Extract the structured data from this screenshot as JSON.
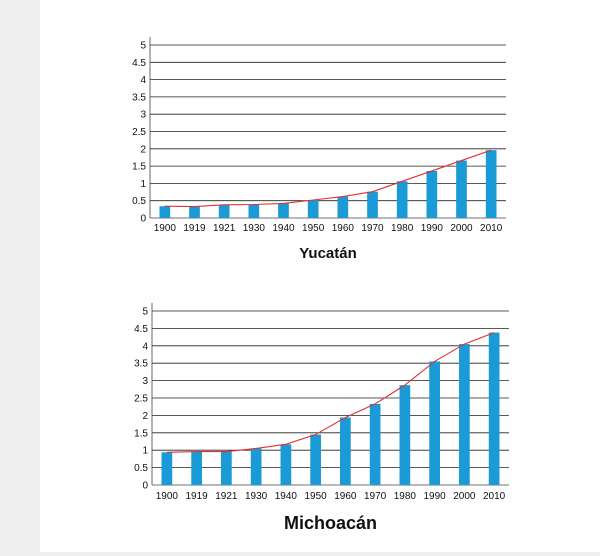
{
  "colors": {
    "bar": "#1a9ad6",
    "line": "#e0322f",
    "grid": "#222222",
    "axis": "#444444"
  },
  "chart_data": [
    {
      "type": "bar",
      "title": "Yucatán",
      "categories": [
        "1900",
        "1919",
        "1921",
        "1930",
        "1940",
        "1950",
        "1960",
        "1970",
        "1980",
        "1990",
        "2000",
        "2010"
      ],
      "values": [
        0.34,
        0.33,
        0.38,
        0.39,
        0.42,
        0.52,
        0.62,
        0.76,
        1.06,
        1.36,
        1.66,
        1.96
      ],
      "line_overlay": true,
      "ylim": [
        0,
        5
      ],
      "yticks": [
        "0",
        "0.5",
        "1",
        "1.5",
        "2",
        "2.5",
        "3",
        "3.5",
        "4",
        "4.5",
        "5"
      ],
      "xlabel": "",
      "ylabel": "",
      "grid": true
    },
    {
      "type": "bar",
      "title": "Michoacán",
      "categories": [
        "1900",
        "1919",
        "1921",
        "1930",
        "1940",
        "1950",
        "1960",
        "1970",
        "1980",
        "1990",
        "2000",
        "2010"
      ],
      "values": [
        0.94,
        0.96,
        0.96,
        1.05,
        1.17,
        1.45,
        1.94,
        2.33,
        2.87,
        3.55,
        4.05,
        4.38
      ],
      "line_overlay": true,
      "ylim": [
        0,
        5
      ],
      "yticks": [
        "0",
        "0.5",
        "1",
        "1.5",
        "2",
        "2.5",
        "3",
        "3.5",
        "4",
        "4.5",
        "5"
      ],
      "xlabel": "",
      "ylabel": "",
      "grid": true
    }
  ]
}
